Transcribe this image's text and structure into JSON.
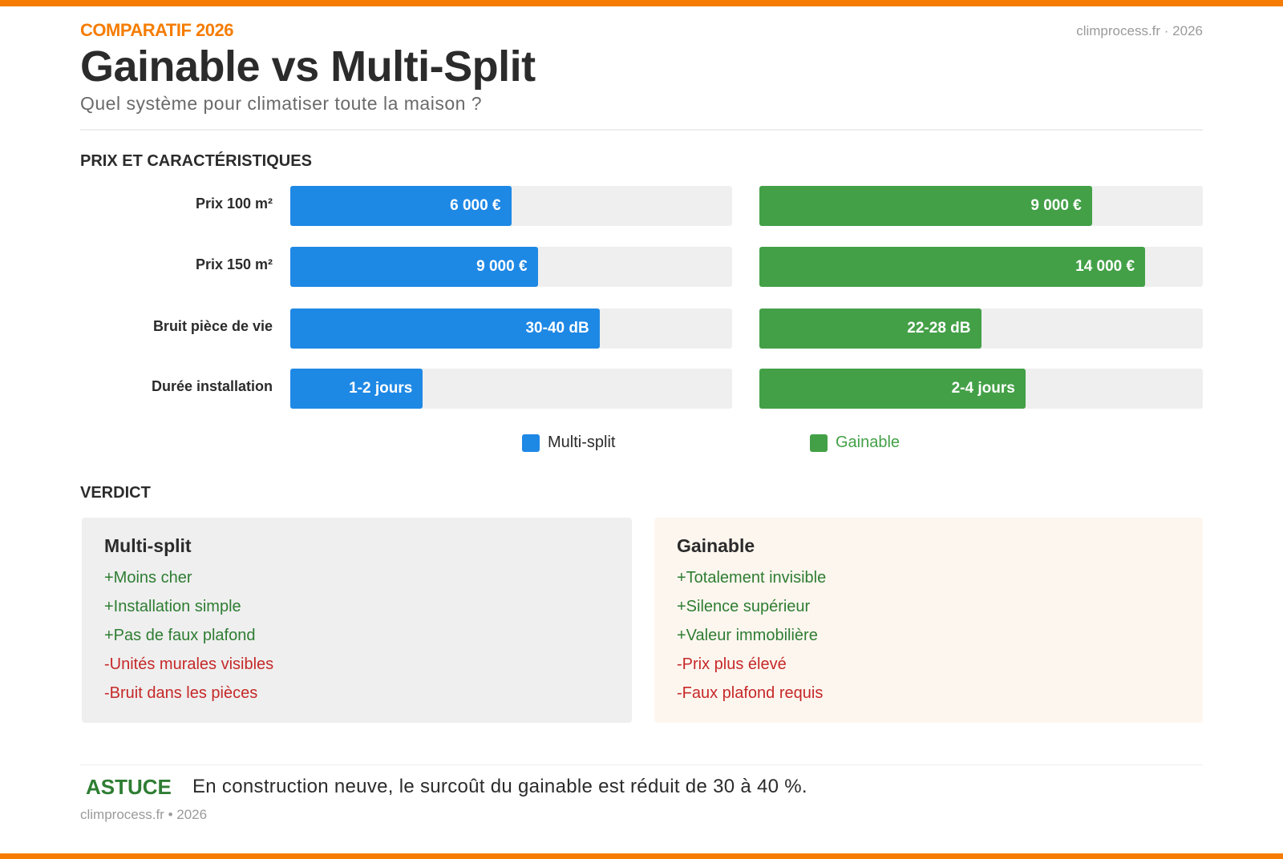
{
  "header": {
    "kicker": "COMPARATIF 2026",
    "site": "climprocess.fr · 2026",
    "title": "Gainable vs Multi-Split",
    "subtitle": "Quel système pour climatiser toute la maison ?"
  },
  "colors": {
    "accent": "#f57c00",
    "multisplit": "#1e88e5",
    "gainable": "#43a047",
    "pro": "#2e7d32",
    "con": "#c62828"
  },
  "chart": {
    "section_title": "PRIX ET CARACTÉRISTIQUES",
    "rows": [
      {
        "label": "Prix 100 m²",
        "multisplit": {
          "value": "6 000 €",
          "fill_pct": 50
        },
        "gainable": {
          "value": "9 000 €",
          "fill_pct": 75
        }
      },
      {
        "label": "Prix 150 m²",
        "multisplit": {
          "value": "9 000 €",
          "fill_pct": 56
        },
        "gainable": {
          "value": "14 000 €",
          "fill_pct": 87
        }
      },
      {
        "label": "Bruit pièce de vie",
        "multisplit": {
          "value": "30-40 dB",
          "fill_pct": 70
        },
        "gainable": {
          "value": "22-28 dB",
          "fill_pct": 50
        }
      },
      {
        "label": "Durée installation",
        "multisplit": {
          "value": "1-2 jours",
          "fill_pct": 30
        },
        "gainable": {
          "value": "2-4 jours",
          "fill_pct": 60
        }
      }
    ],
    "legend": {
      "multisplit": "Multi-split",
      "gainable": "Gainable"
    }
  },
  "verdict": {
    "section_title": "VERDICT",
    "multisplit": {
      "title": "Multi-split",
      "pros": [
        "+Moins cher",
        "+Installation simple",
        "+Pas de faux plafond"
      ],
      "cons": [
        "-Unités murales visibles",
        "-Bruit dans les pièces"
      ]
    },
    "gainable": {
      "title": "Gainable",
      "pros": [
        "+Totalement invisible",
        "+Silence supérieur",
        "+Valeur immobilière"
      ],
      "cons": [
        "-Prix plus élevé",
        "-Faux plafond requis"
      ]
    }
  },
  "tip": {
    "label": "ASTUCE",
    "text": "En construction neuve, le surcoût du gainable est réduit de 30 à 40 %."
  },
  "footer": {
    "text": "climprocess.fr • 2026"
  }
}
